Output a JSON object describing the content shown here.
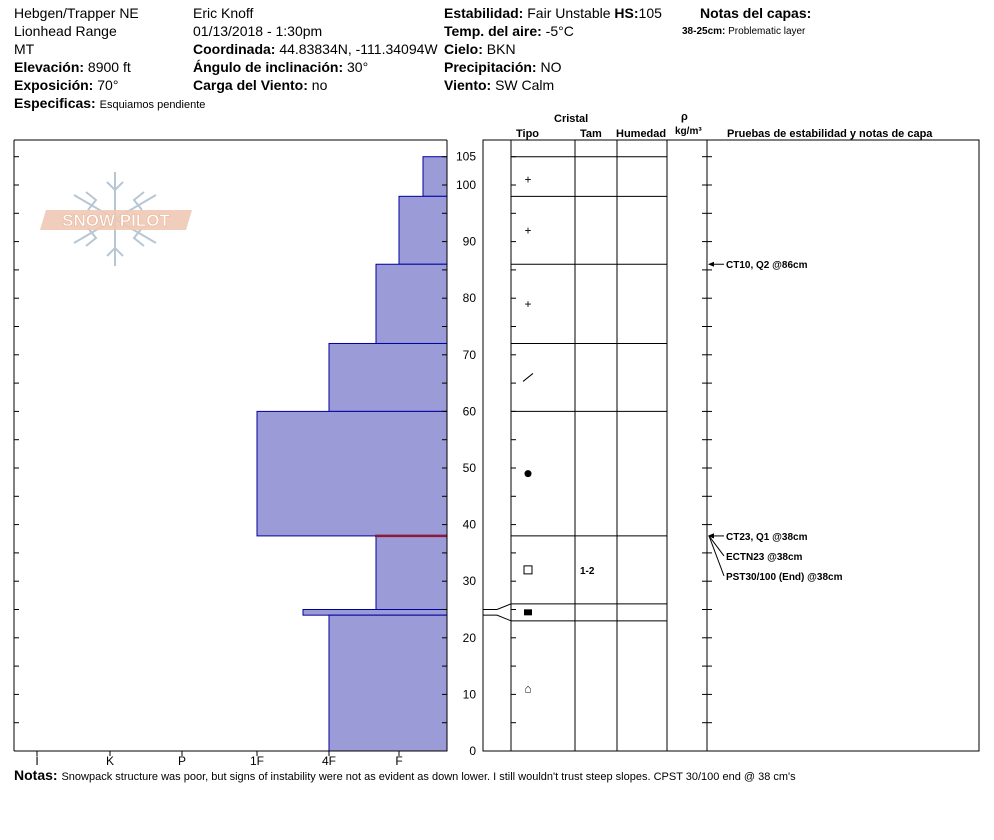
{
  "header": {
    "location": "Hebgen/Trapper NE",
    "range": "Lionhead Range",
    "state": "MT",
    "elevation_label": "Elevación:",
    "elevation": "8900 ft",
    "aspect_label": "Exposición:",
    "aspect": "70°",
    "specifics_label": "Especificas:",
    "specifics": "Esquiamos pendiente",
    "observer": "Eric Knoff",
    "datetime": "01/13/2018 - 1:30pm",
    "coord_label": "Coordinada:",
    "coord": "44.83834N, -111.34094W",
    "incline_label": "Ángulo de inclinación:",
    "incline": "30°",
    "wind_load_label": "Carga del Viento:",
    "wind_load": "no",
    "stability_label": "Estabilidad:",
    "stability": "Fair Unstable",
    "hs_label": "HS:",
    "hs": "105",
    "air_temp_label": "Temp. del aire:",
    "air_temp": "-5°C",
    "sky_label": "Cielo:",
    "sky": "BKN",
    "precip_label": "Precipitación:",
    "precip": "NO",
    "wind_label": "Viento:",
    "wind": "SW Calm",
    "layer_notes_label": "Notas del capas:",
    "layer_note_range": "38-25cm:",
    "layer_note_text": "Problematic layer"
  },
  "logo_text": "SNOW PILOT",
  "columns": {
    "crystal": "Cristal",
    "type": "Tipo",
    "size": "Tam",
    "moisture": "Humedad",
    "density_symbol": "ρ",
    "density_unit": "kg/m³",
    "tests": "Pruebas de estabilidad y notas de capa"
  },
  "footer": {
    "notes_label": "Notas:",
    "notes": "Snowpack structure was poor, but signs of instability were not as evident as down lower. I still wouldn't trust steep slopes. CPST 30/100 end @ 38 cm's"
  },
  "chart_data": {
    "type": "bar",
    "y_axis": {
      "range": [
        0,
        108
      ],
      "ticks": [
        0,
        10,
        20,
        30,
        40,
        50,
        60,
        70,
        80,
        90,
        100,
        105
      ]
    },
    "hardness_scale": [
      "I",
      "K",
      "P",
      "1F",
      "4F",
      "F"
    ],
    "hardness_layers": [
      {
        "top": 105,
        "bottom": 98,
        "hardness": "F+"
      },
      {
        "top": 98,
        "bottom": 86,
        "hardness": "F-"
      },
      {
        "top": 86,
        "bottom": 72,
        "hardness": "4F-"
      },
      {
        "top": 72,
        "bottom": 60,
        "hardness": "4F+"
      },
      {
        "top": 60,
        "bottom": 38,
        "hardness": "1F"
      },
      {
        "top": 38,
        "bottom": 25,
        "hardness": "4F-"
      },
      {
        "top": 25,
        "bottom": 24,
        "hardness": "1F-"
      },
      {
        "top": 24,
        "bottom": 0,
        "hardness": "4F"
      }
    ],
    "layer_boundaries": [
      105,
      98,
      86,
      72,
      60,
      38,
      26,
      23
    ],
    "crystal_layers": [
      {
        "depth": 101,
        "type": "+",
        "size": ""
      },
      {
        "depth": 92,
        "type": "+",
        "size": ""
      },
      {
        "depth": 79,
        "type": "+",
        "size": ""
      },
      {
        "depth": 66,
        "type": "/",
        "size": ""
      },
      {
        "depth": 49,
        "type": "●",
        "size": ""
      },
      {
        "depth": 32,
        "type": "□",
        "size": "1-2"
      },
      {
        "depth": 24.5,
        "type": "■",
        "size": ""
      },
      {
        "depth": 11,
        "type": "⌂",
        "size": ""
      }
    ],
    "stability_tests": [
      {
        "depth": 86,
        "label": "CT10, Q2 @86cm"
      },
      {
        "depth": 38,
        "label": "CT23, Q1 @38cm"
      },
      {
        "depth": 38,
        "label": "ECTN23 @38cm"
      },
      {
        "depth": 38,
        "label": "PST30/100 (End) @38cm"
      }
    ],
    "weak_layer_depth": 38
  }
}
